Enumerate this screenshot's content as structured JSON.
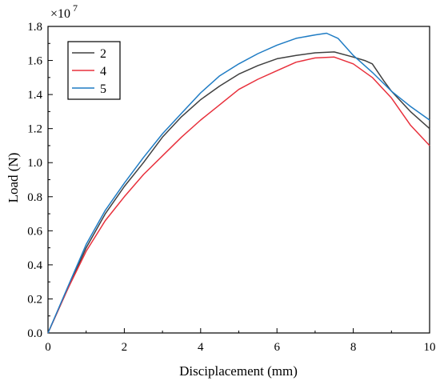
{
  "chart_data": {
    "type": "line",
    "xlabel": "Disciplacement (mm)",
    "ylabel": "Load (N)",
    "y_multiplier_label": "×10",
    "y_multiplier_exponent": "7",
    "xlim": [
      0,
      10
    ],
    "ylim": [
      0,
      1.8
    ],
    "x_ticks": [
      "0",
      "2",
      "4",
      "6",
      "8",
      "10"
    ],
    "y_ticks": [
      "0.0",
      "0.2",
      "0.4",
      "0.6",
      "0.8",
      "1.0",
      "1.2",
      "1.4",
      "1.6",
      "1.8"
    ],
    "x_tick_values": [
      0,
      2,
      4,
      6,
      8,
      10
    ],
    "y_tick_values": [
      0,
      0.2,
      0.4,
      0.6,
      0.8,
      1.0,
      1.2,
      1.4,
      1.6,
      1.8
    ],
    "grid": false,
    "legend_position": "top-left",
    "series": [
      {
        "name": "2",
        "color": "#404040",
        "x": [
          0,
          0.5,
          1.0,
          1.5,
          2.0,
          2.5,
          3.0,
          3.5,
          4.0,
          4.5,
          5.0,
          5.5,
          6.0,
          6.5,
          7.0,
          7.5,
          8.0,
          8.3,
          8.5,
          8.8,
          9.0,
          9.5,
          10.0
        ],
        "y": [
          0,
          0.25,
          0.5,
          0.7,
          0.86,
          1.0,
          1.15,
          1.27,
          1.37,
          1.45,
          1.52,
          1.57,
          1.61,
          1.63,
          1.645,
          1.65,
          1.62,
          1.6,
          1.58,
          1.48,
          1.42,
          1.3,
          1.2
        ]
      },
      {
        "name": "4",
        "color": "#e8303c",
        "x": [
          0,
          0.5,
          1.0,
          1.5,
          2.0,
          2.5,
          3.0,
          3.5,
          4.0,
          4.5,
          5.0,
          5.5,
          6.0,
          6.5,
          7.0,
          7.5,
          8.0,
          8.5,
          9.0,
          9.5,
          10.0
        ],
        "y": [
          0,
          0.25,
          0.48,
          0.66,
          0.8,
          0.93,
          1.04,
          1.15,
          1.25,
          1.34,
          1.43,
          1.49,
          1.54,
          1.59,
          1.615,
          1.62,
          1.58,
          1.5,
          1.38,
          1.22,
          1.1
        ]
      },
      {
        "name": "5",
        "color": "#1f7cc4",
        "x": [
          0,
          0.5,
          1.0,
          1.5,
          2.0,
          2.5,
          3.0,
          3.5,
          4.0,
          4.5,
          5.0,
          5.5,
          6.0,
          6.5,
          7.0,
          7.3,
          7.6,
          8.0,
          8.5,
          9.0,
          9.5,
          10.0
        ],
        "y": [
          0,
          0.26,
          0.52,
          0.72,
          0.88,
          1.03,
          1.17,
          1.29,
          1.41,
          1.51,
          1.58,
          1.64,
          1.69,
          1.73,
          1.75,
          1.76,
          1.73,
          1.63,
          1.53,
          1.42,
          1.33,
          1.25
        ]
      }
    ]
  }
}
